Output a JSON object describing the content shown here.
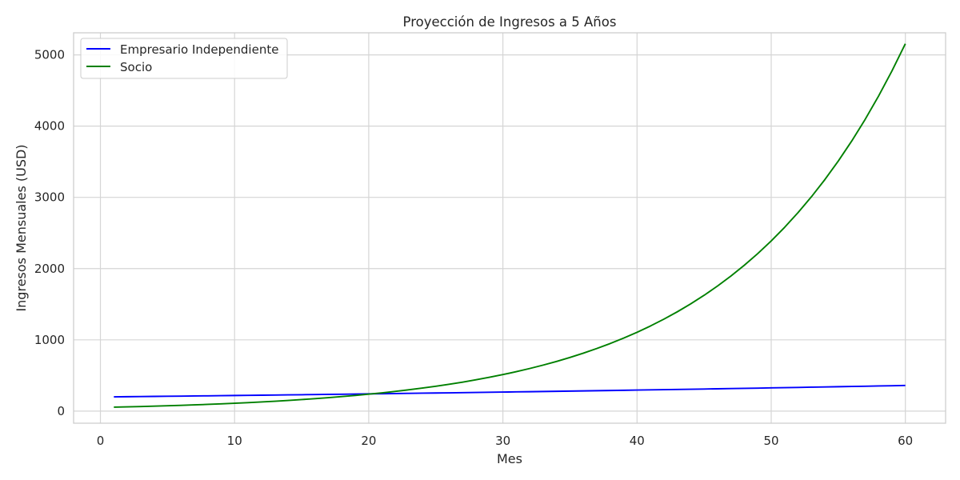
{
  "chart_data": {
    "type": "line",
    "title": "Proyección de Ingresos a 5 Años",
    "xlabel": "Mes",
    "ylabel": "Ingresos Mensuales (USD)",
    "xlim": [
      -2,
      63
    ],
    "ylim": [
      -170,
      5310
    ],
    "xticks": [
      0,
      10,
      20,
      30,
      40,
      50,
      60
    ],
    "yticks": [
      0,
      1000,
      2000,
      3000,
      4000,
      5000
    ],
    "grid": true,
    "legend_position": "top-left",
    "series": [
      {
        "name": "Empresario Independiente",
        "color": "#0000ff",
        "model": "exponential",
        "start": 200,
        "monthly_growth": 0.01,
        "x_start": 1,
        "x_end": 60
      },
      {
        "name": "Socio",
        "color": "#008000",
        "model": "exponential",
        "start": 55,
        "monthly_growth": 0.08,
        "x_start": 1,
        "x_end": 60
      }
    ]
  }
}
